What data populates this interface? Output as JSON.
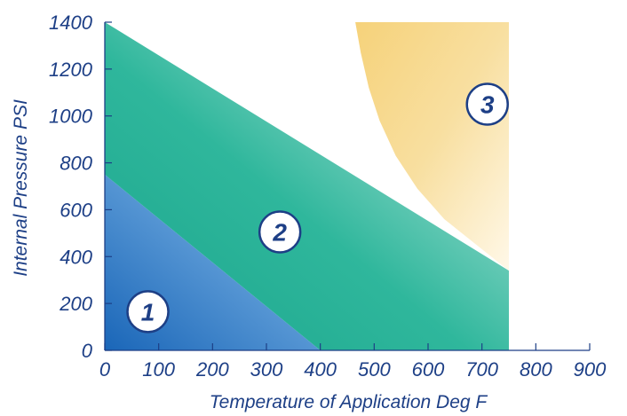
{
  "chart_data": {
    "type": "area",
    "xlabel": "Temperature of Application Deg F",
    "ylabel": "Internal Pressure PSI",
    "xlim": [
      0,
      900
    ],
    "ylim": [
      0,
      1400
    ],
    "x_ticks": [
      "0",
      "100",
      "200",
      "300",
      "400",
      "500",
      "600",
      "700",
      "800",
      "900"
    ],
    "y_ticks": [
      "0",
      "200",
      "400",
      "600",
      "800",
      "1000",
      "1200",
      "1400"
    ],
    "grid": false,
    "regions": [
      {
        "name": "1",
        "color": "#2e78c4",
        "boundary": [
          [
            0,
            0
          ],
          [
            400,
            0
          ],
          [
            0,
            750
          ]
        ]
      },
      {
        "name": "2",
        "color": "#2fb79c",
        "boundary": [
          [
            400,
            0
          ],
          [
            750,
            0
          ],
          [
            750,
            340
          ],
          [
            0,
            1400
          ],
          [
            0,
            750
          ]
        ]
      },
      {
        "name": "3",
        "color": "#f0c860",
        "boundary": [
          [
            750,
            340
          ],
          [
            690,
            450
          ],
          [
            630,
            560
          ],
          [
            580,
            690
          ],
          [
            540,
            830
          ],
          [
            510,
            980
          ],
          [
            490,
            1120
          ],
          [
            475,
            1270
          ],
          [
            465,
            1400
          ],
          [
            750,
            1400
          ]
        ]
      }
    ],
    "zone_labels": [
      {
        "text": "1",
        "x": 80,
        "y": 165
      },
      {
        "text": "2",
        "x": 325,
        "y": 505
      },
      {
        "text": "3",
        "x": 710,
        "y": 1050
      }
    ]
  }
}
